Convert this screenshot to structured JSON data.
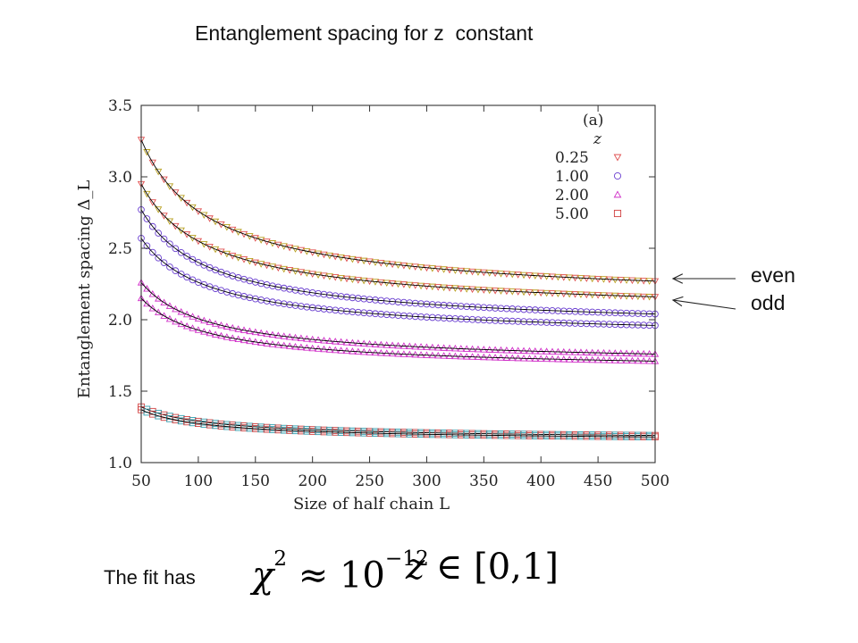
{
  "slide": {
    "title": "Entanglement spacing for z  constant",
    "annotations": {
      "even": "even",
      "odd": "odd"
    },
    "fit": {
      "label": "The fit has",
      "chi_symbol": "χ",
      "chi_power": "2",
      "approx": "≈",
      "base": "10",
      "exponent": "−12",
      "z_var": "z",
      "element_of": "∈",
      "interval": "[0,1]"
    }
  },
  "chart_data": {
    "type": "scatter",
    "panel_label": "(a)",
    "legend_title": "z",
    "legend_placement": "top-right",
    "xlabel": "Size of half chain L",
    "ylabel": "Entanglement  spacing  Δ_L",
    "xlim": [
      50,
      500
    ],
    "ylim": [
      1.0,
      3.5
    ],
    "xticks": [
      50,
      100,
      150,
      200,
      250,
      300,
      350,
      400,
      450,
      500
    ],
    "yticks": [
      1.0,
      1.5,
      2.0,
      2.5,
      3.0,
      3.5
    ],
    "ytick_labels": [
      "1.0",
      "1.5",
      "2.0",
      "2.5",
      "3.0",
      "3.5"
    ],
    "grid": false,
    "fit_line_color": "#000000",
    "x_sampling": {
      "start": 50,
      "end": 500,
      "step": 5
    },
    "curve_model": "y = a + b / x^c",
    "series": [
      {
        "name": "0.25",
        "parity": "even",
        "marker": "triangle-down",
        "color": "#e05050",
        "secondary_color": "#b8a020",
        "y_at_50": 3.26,
        "y_at_500": 2.27,
        "exponent": 0.8
      },
      {
        "name": "0.25",
        "parity": "odd",
        "marker": "triangle-down",
        "color": "#e05050",
        "secondary_color": "#b8a020",
        "y_at_50": 2.95,
        "y_at_500": 2.16,
        "exponent": 0.8
      },
      {
        "name": "1.00",
        "parity": "even",
        "marker": "circle",
        "color": "#6a3fd0",
        "y_at_50": 2.77,
        "y_at_500": 2.04,
        "exponent": 0.8
      },
      {
        "name": "1.00",
        "parity": "odd",
        "marker": "circle",
        "color": "#6a3fd0",
        "y_at_50": 2.57,
        "y_at_500": 1.96,
        "exponent": 0.8
      },
      {
        "name": "2.00",
        "parity": "even",
        "marker": "triangle-up",
        "color": "#d030c8",
        "y_at_50": 2.26,
        "y_at_500": 1.76,
        "exponent": 0.8
      },
      {
        "name": "2.00",
        "parity": "odd",
        "marker": "triangle-up",
        "color": "#d030c8",
        "y_at_50": 2.15,
        "y_at_500": 1.71,
        "exponent": 0.8
      },
      {
        "name": "5.00",
        "parity": "even",
        "marker": "square",
        "color": "#d04040",
        "secondary_color": "#30a0b0",
        "y_at_50": 1.39,
        "y_at_500": 1.19,
        "exponent": 0.8
      },
      {
        "name": "5.00",
        "parity": "odd",
        "marker": "square",
        "color": "#d04040",
        "secondary_color": "#30a0b0",
        "y_at_50": 1.37,
        "y_at_500": 1.18,
        "exponent": 0.8
      }
    ],
    "legend_entries": [
      {
        "label": "0.25",
        "marker": "triangle-down",
        "color": "#e05050"
      },
      {
        "label": "1.00",
        "marker": "circle",
        "color": "#6a3fd0"
      },
      {
        "label": "2.00",
        "marker": "triangle-up",
        "color": "#d030c8"
      },
      {
        "label": "5.00",
        "marker": "square",
        "color": "#d04040"
      }
    ]
  }
}
